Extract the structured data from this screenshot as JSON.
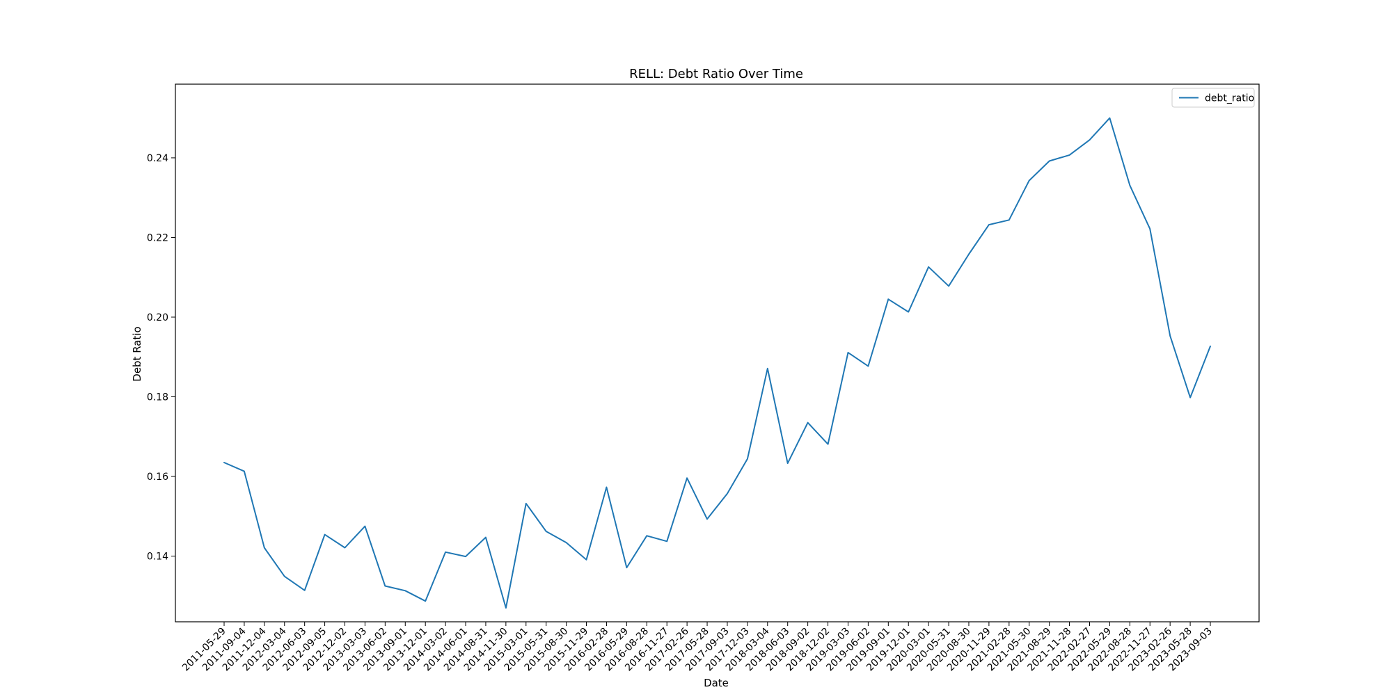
{
  "chart_data": {
    "type": "line",
    "title": "RELL: Debt Ratio Over Time",
    "xlabel": "Date",
    "ylabel": "Debt Ratio",
    "ylim": [
      0.1235,
      0.2585
    ],
    "yticks": [
      0.14,
      0.16,
      0.18,
      0.2,
      0.22,
      0.24
    ],
    "ytick_labels": [
      "0.14",
      "0.16",
      "0.18",
      "0.20",
      "0.22",
      "0.24"
    ],
    "grid": false,
    "legend_position": "top-right",
    "x": [
      "2011-05-29",
      "2011-09-04",
      "2011-12-04",
      "2012-03-04",
      "2012-06-03",
      "2012-09-05",
      "2012-12-02",
      "2013-03-03",
      "2013-06-02",
      "2013-09-01",
      "2013-12-01",
      "2014-03-02",
      "2014-06-01",
      "2014-08-31",
      "2014-11-30",
      "2015-03-01",
      "2015-05-31",
      "2015-08-30",
      "2015-11-29",
      "2016-02-28",
      "2016-05-29",
      "2016-08-28",
      "2016-11-27",
      "2017-02-26",
      "2017-05-28",
      "2017-09-03",
      "2017-12-03",
      "2018-03-04",
      "2018-06-03",
      "2018-09-02",
      "2018-12-02",
      "2019-03-03",
      "2019-06-02",
      "2019-09-01",
      "2019-12-01",
      "2020-03-01",
      "2020-05-31",
      "2020-08-30",
      "2020-11-29",
      "2021-02-28",
      "2021-05-30",
      "2021-08-29",
      "2021-11-28",
      "2022-02-27",
      "2022-05-29",
      "2022-08-28",
      "2022-11-27",
      "2023-02-26",
      "2023-05-28",
      "2023-09-03"
    ],
    "series": [
      {
        "name": "debt_ratio",
        "color": "#1f77b4",
        "values": [
          0.1635,
          0.1613,
          0.1421,
          0.1349,
          0.1314,
          0.1454,
          0.1421,
          0.1475,
          0.1325,
          0.1313,
          0.1287,
          0.141,
          0.1399,
          0.1447,
          0.127,
          0.1532,
          0.1462,
          0.1434,
          0.1391,
          0.1573,
          0.1371,
          0.1451,
          0.1437,
          0.1596,
          0.1493,
          0.1557,
          0.1644,
          0.1871,
          0.1633,
          0.1735,
          0.1681,
          0.1911,
          0.1877,
          0.2045,
          0.2013,
          0.2126,
          0.2078,
          0.2158,
          0.2232,
          0.2244,
          0.2343,
          0.2392,
          0.2407,
          0.2445,
          0.25,
          0.2331,
          0.2222,
          0.1953,
          0.1798,
          0.1927
        ]
      }
    ]
  }
}
